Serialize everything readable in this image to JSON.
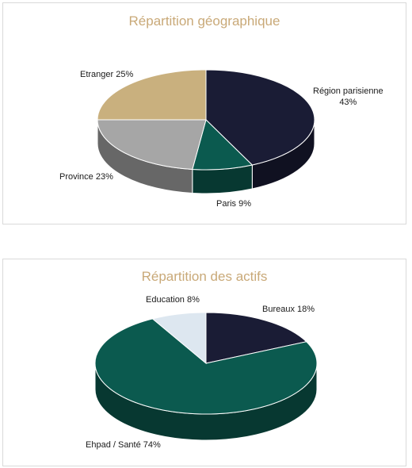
{
  "colors": {
    "title": "#c9a978",
    "navy": "#1a1c35",
    "teal": "#0b5a4f",
    "grey": "#a6a6a6",
    "tan": "#c9b07e",
    "lightblue": "#dde7f0"
  },
  "chart_data": [
    {
      "type": "pie",
      "title": "Répartition géographique",
      "slices": [
        {
          "name": "Région parisienne",
          "value": 43,
          "label": "Région parisienne 43%",
          "color": "#1a1c35"
        },
        {
          "name": "Paris",
          "value": 9,
          "label": "Paris  9%",
          "color": "#0b5a4f"
        },
        {
          "name": "Province",
          "value": 23,
          "label": "Province 23%",
          "color": "#a6a6a6"
        },
        {
          "name": "Etranger",
          "value": 25,
          "label": "Etranger 25%",
          "color": "#c9b07e"
        }
      ]
    },
    {
      "type": "pie",
      "title": "Répartition des actifs",
      "slices": [
        {
          "name": "Bureaux",
          "value": 18,
          "label": "Bureaux 18%",
          "color": "#1a1c35"
        },
        {
          "name": "Ehpad / Santé",
          "value": 74,
          "label": "Ehpad / Santé 74%",
          "color": "#0b5a4f"
        },
        {
          "name": "Education",
          "value": 8,
          "label": "Education 8%",
          "color": "#dde7f0"
        }
      ]
    }
  ]
}
